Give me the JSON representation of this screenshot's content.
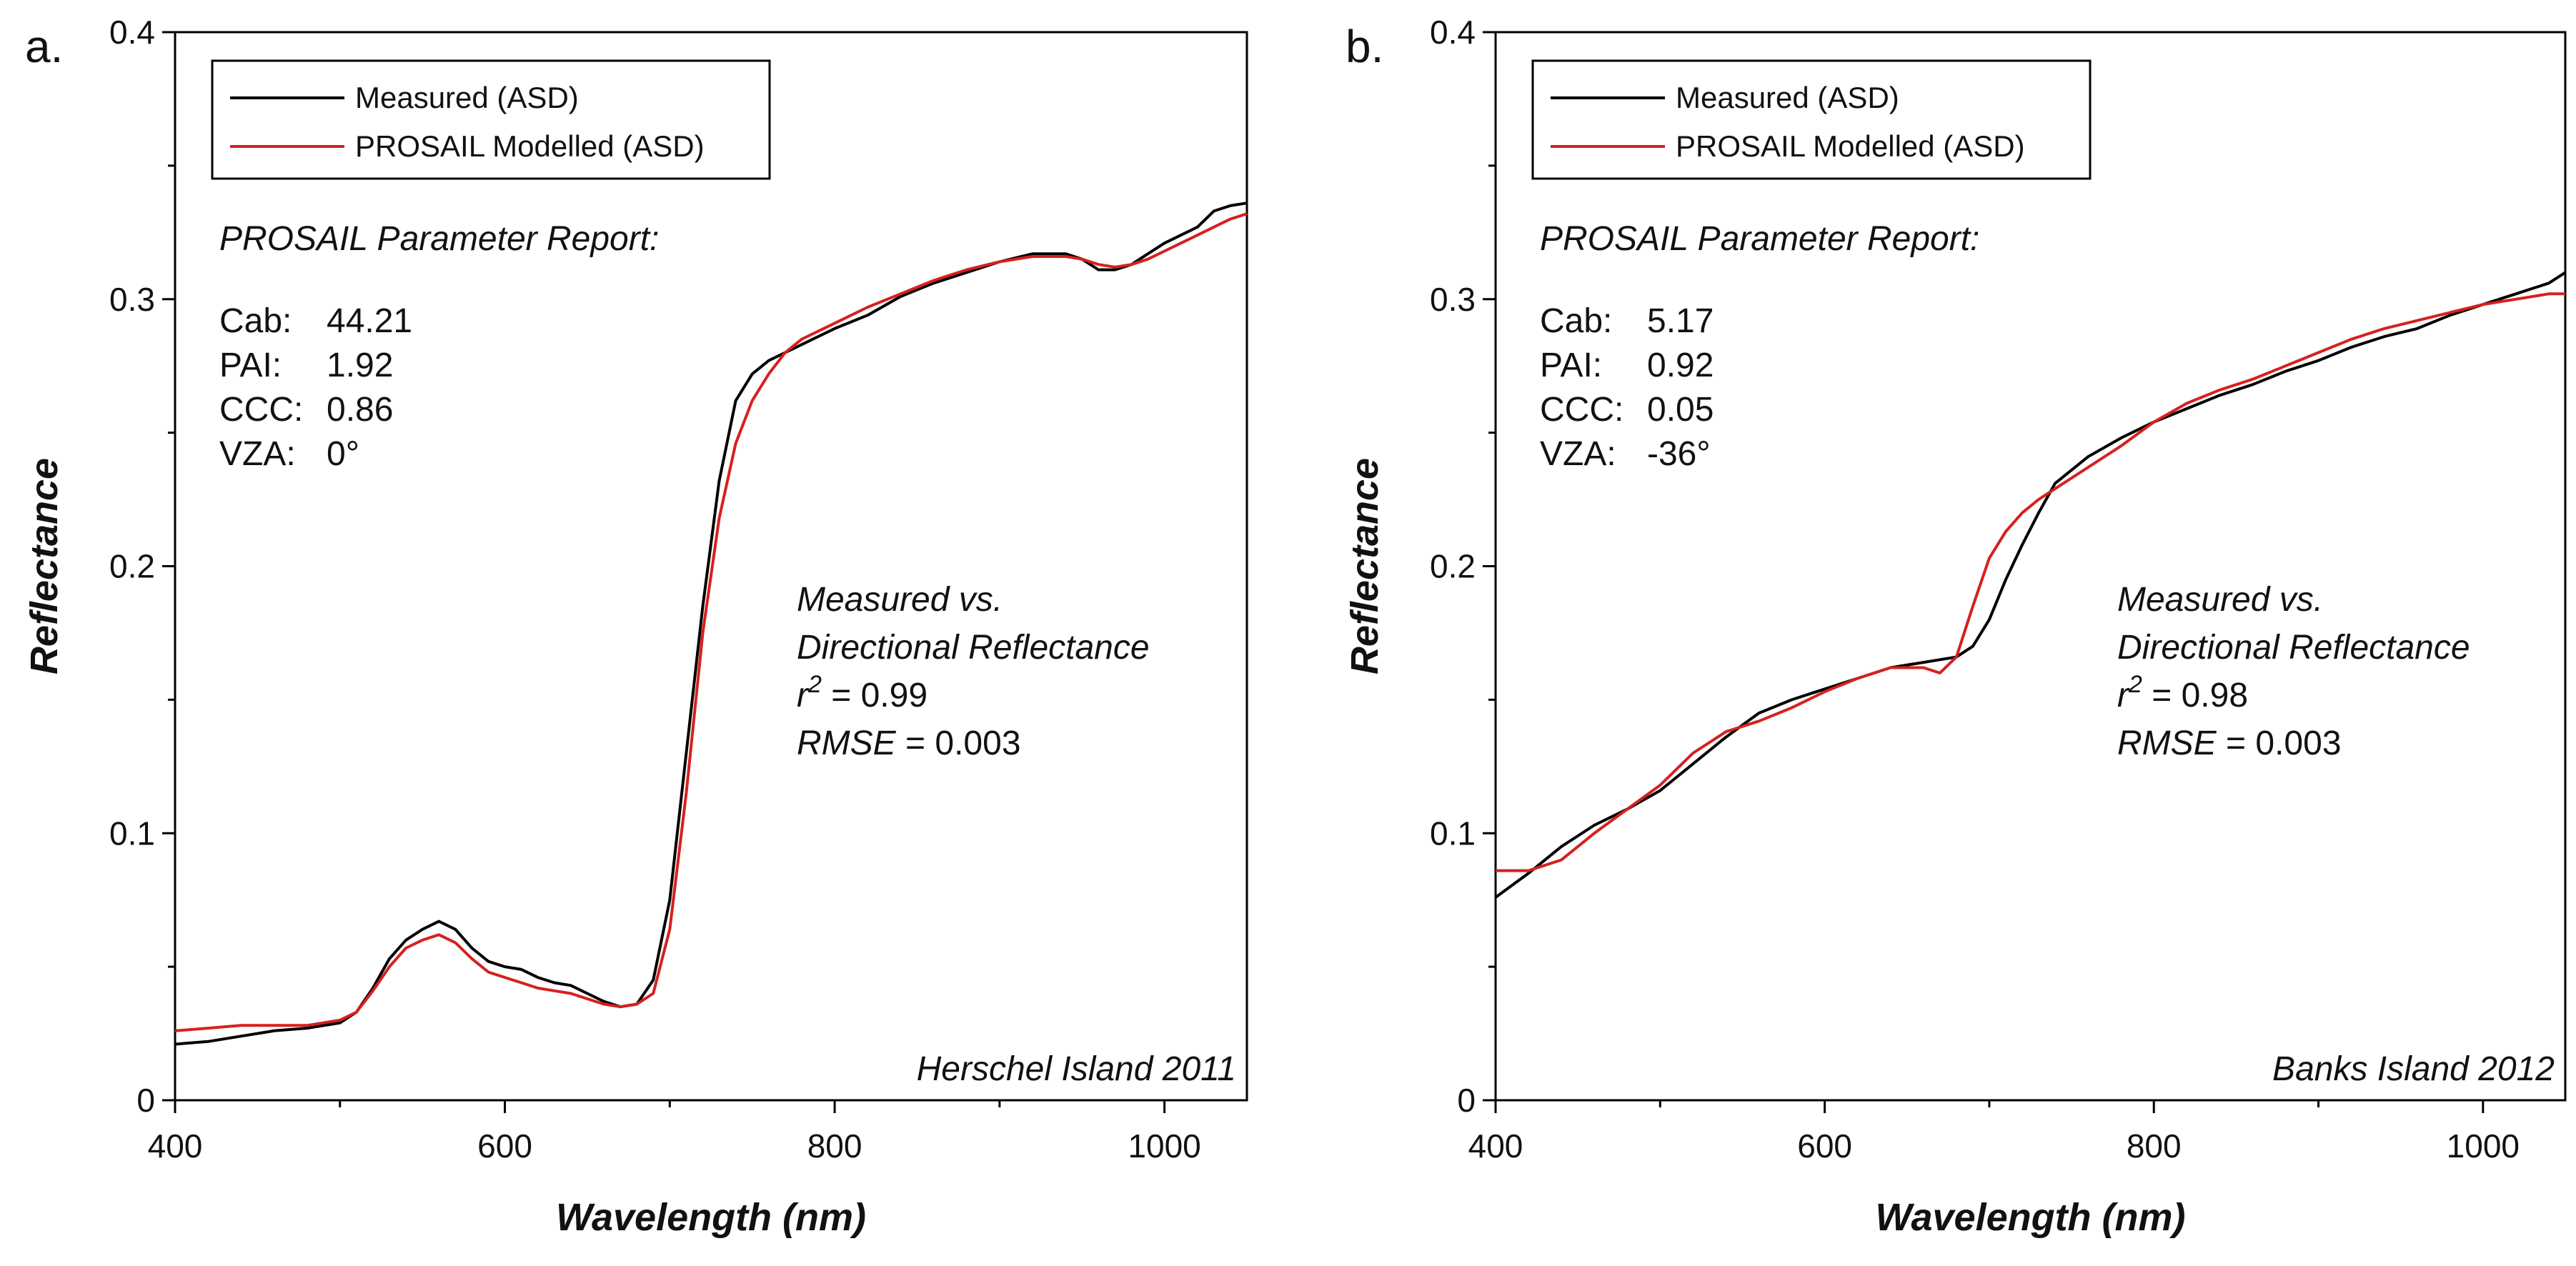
{
  "charts": [
    {
      "panel_label": "a.",
      "legend": {
        "measured_label": "Measured (ASD)",
        "modelled_label": "PROSAIL Modelled (ASD)",
        "measured_color": "#000000",
        "modelled_color": "#d62020"
      },
      "report": {
        "heading": "PROSAIL Parameter Report:",
        "lines": [
          {
            "label": "Cab:",
            "value": "44.21"
          },
          {
            "label": "PAI:",
            "value": "1.92"
          },
          {
            "label": "CCC:",
            "value": "0.86"
          },
          {
            "label": "VZA:",
            "value": "0°"
          }
        ]
      },
      "stats": {
        "line1": "Measured vs.",
        "line2": "Directional Reflectance",
        "r2_symbol": "r",
        "r2_sup": "2",
        "r2_value": " = 0.99",
        "rmse_label": "RMSE",
        "rmse_value": " = 0.003"
      },
      "site": "Herschel Island 2011"
    },
    {
      "panel_label": "b.",
      "legend": {
        "measured_label": "Measured (ASD)",
        "modelled_label": "PROSAIL Modelled (ASD)",
        "measured_color": "#000000",
        "modelled_color": "#d62020"
      },
      "report": {
        "heading": "PROSAIL Parameter Report:",
        "lines": [
          {
            "label": "Cab:",
            "value": "5.17"
          },
          {
            "label": "PAI:",
            "value": "0.92"
          },
          {
            "label": "CCC:",
            "value": "0.05"
          },
          {
            "label": "VZA:",
            "value": "-36°"
          }
        ]
      },
      "stats": {
        "line1": "Measured vs.",
        "line2": "Directional Reflectance",
        "r2_symbol": "r",
        "r2_sup": "2",
        "r2_value": " = 0.98",
        "rmse_label": "RMSE",
        "rmse_value": " = 0.003"
      },
      "site": "Banks Island 2012"
    }
  ],
  "chart_data": [
    {
      "type": "line",
      "xlabel": "Wavelength (nm)",
      "ylabel": "Reflectance",
      "xlim": [
        400,
        1050
      ],
      "ylim": [
        0,
        0.4
      ],
      "xticks": [
        400,
        600,
        800,
        1000
      ],
      "yticks": [
        0,
        0.1,
        0.2,
        0.3,
        0.4
      ],
      "xtick_labels": [
        "400",
        "600",
        "800",
        "1000"
      ],
      "ytick_labels": [
        "0",
        "0.1",
        "0.2",
        "0.3",
        "0.4"
      ],
      "series": [
        {
          "name": "Measured (ASD)",
          "color": "#000000",
          "x": [
            400,
            420,
            440,
            460,
            480,
            500,
            510,
            520,
            530,
            540,
            550,
            560,
            570,
            580,
            590,
            600,
            610,
            620,
            630,
            640,
            650,
            660,
            670,
            680,
            690,
            700,
            710,
            720,
            730,
            740,
            750,
            760,
            770,
            780,
            800,
            820,
            840,
            860,
            880,
            900,
            920,
            940,
            950,
            960,
            970,
            980,
            990,
            1000,
            1010,
            1020,
            1030,
            1040,
            1050
          ],
          "y": [
            0.021,
            0.022,
            0.024,
            0.026,
            0.027,
            0.029,
            0.033,
            0.042,
            0.053,
            0.06,
            0.064,
            0.067,
            0.064,
            0.057,
            0.052,
            0.05,
            0.049,
            0.046,
            0.044,
            0.043,
            0.04,
            0.037,
            0.035,
            0.036,
            0.045,
            0.075,
            0.13,
            0.185,
            0.232,
            0.262,
            0.272,
            0.277,
            0.28,
            0.283,
            0.289,
            0.294,
            0.301,
            0.306,
            0.31,
            0.314,
            0.317,
            0.317,
            0.315,
            0.311,
            0.311,
            0.313,
            0.317,
            0.321,
            0.324,
            0.327,
            0.333,
            0.335,
            0.336
          ]
        },
        {
          "name": "PROSAIL Modelled (ASD)",
          "color": "#d62020",
          "x": [
            400,
            420,
            440,
            460,
            480,
            500,
            510,
            520,
            530,
            540,
            550,
            560,
            570,
            580,
            590,
            600,
            610,
            620,
            630,
            640,
            650,
            660,
            670,
            680,
            690,
            700,
            710,
            720,
            730,
            740,
            750,
            760,
            770,
            780,
            800,
            820,
            840,
            860,
            880,
            900,
            920,
            940,
            950,
            960,
            970,
            980,
            990,
            1000,
            1010,
            1020,
            1030,
            1040,
            1050
          ],
          "y": [
            0.026,
            0.027,
            0.028,
            0.028,
            0.028,
            0.03,
            0.033,
            0.041,
            0.05,
            0.057,
            0.06,
            0.062,
            0.059,
            0.053,
            0.048,
            0.046,
            0.044,
            0.042,
            0.041,
            0.04,
            0.038,
            0.036,
            0.035,
            0.036,
            0.04,
            0.064,
            0.115,
            0.175,
            0.218,
            0.246,
            0.262,
            0.272,
            0.28,
            0.285,
            0.291,
            0.297,
            0.302,
            0.307,
            0.311,
            0.314,
            0.316,
            0.316,
            0.315,
            0.313,
            0.312,
            0.313,
            0.315,
            0.318,
            0.321,
            0.324,
            0.327,
            0.33,
            0.332
          ]
        }
      ]
    },
    {
      "type": "line",
      "xlabel": "Wavelength (nm)",
      "ylabel": "Reflectance",
      "xlim": [
        400,
        1050
      ],
      "ylim": [
        0,
        0.4
      ],
      "xticks": [
        400,
        600,
        800,
        1000
      ],
      "yticks": [
        0,
        0.1,
        0.2,
        0.3,
        0.4
      ],
      "xtick_labels": [
        "400",
        "600",
        "800",
        "1000"
      ],
      "ytick_labels": [
        "0",
        "0.1",
        "0.2",
        "0.3",
        "0.4"
      ],
      "series": [
        {
          "name": "Measured (ASD)",
          "color": "#000000",
          "x": [
            400,
            420,
            440,
            460,
            480,
            500,
            520,
            540,
            560,
            580,
            600,
            620,
            640,
            660,
            670,
            680,
            690,
            700,
            710,
            720,
            730,
            740,
            760,
            780,
            800,
            820,
            840,
            860,
            880,
            900,
            920,
            940,
            960,
            980,
            1000,
            1020,
            1040,
            1050
          ],
          "y": [
            0.076,
            0.085,
            0.095,
            0.103,
            0.109,
            0.116,
            0.126,
            0.136,
            0.145,
            0.15,
            0.154,
            0.158,
            0.162,
            0.164,
            0.165,
            0.166,
            0.17,
            0.18,
            0.195,
            0.208,
            0.22,
            0.231,
            0.241,
            0.248,
            0.254,
            0.259,
            0.264,
            0.268,
            0.273,
            0.277,
            0.282,
            0.286,
            0.289,
            0.294,
            0.298,
            0.302,
            0.306,
            0.31
          ]
        },
        {
          "name": "PROSAIL Modelled (ASD)",
          "color": "#d62020",
          "x": [
            400,
            420,
            440,
            460,
            480,
            500,
            520,
            540,
            560,
            580,
            600,
            620,
            640,
            660,
            670,
            680,
            690,
            700,
            710,
            720,
            730,
            740,
            760,
            780,
            800,
            820,
            840,
            860,
            880,
            900,
            920,
            940,
            960,
            980,
            1000,
            1020,
            1040,
            1050
          ],
          "y": [
            0.086,
            0.086,
            0.09,
            0.1,
            0.109,
            0.118,
            0.13,
            0.138,
            0.142,
            0.147,
            0.153,
            0.158,
            0.162,
            0.162,
            0.16,
            0.166,
            0.185,
            0.203,
            0.213,
            0.22,
            0.225,
            0.229,
            0.237,
            0.245,
            0.254,
            0.261,
            0.266,
            0.27,
            0.275,
            0.28,
            0.285,
            0.289,
            0.292,
            0.295,
            0.298,
            0.3,
            0.302,
            0.302
          ]
        }
      ]
    }
  ]
}
